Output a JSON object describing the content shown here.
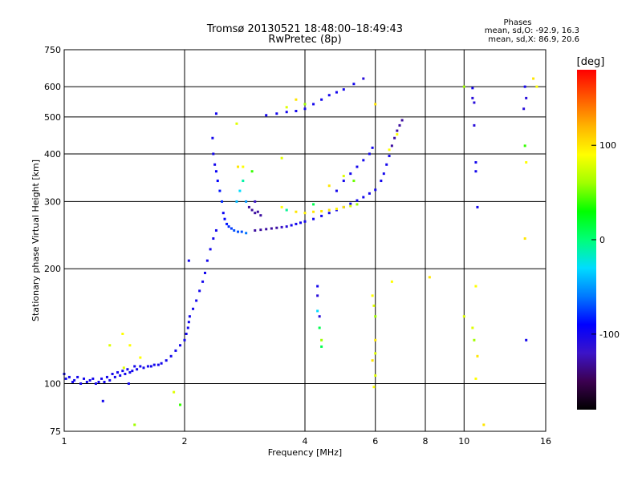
{
  "chart_data": {
    "type": "scatter",
    "title": "Tromsø 20130521 18:48:00–18:49:43",
    "subtitle": "RwPretec (8p)",
    "xlabel": "Frequency [MHz]",
    "ylabel": "Stationary phase Virtual Height [km]",
    "x_scale": "log",
    "y_scale": "log",
    "xlim": [
      1,
      16
    ],
    "ylim": [
      75,
      750
    ],
    "x_ticks": [
      1,
      2,
      4,
      6,
      8,
      10,
      16
    ],
    "x_tick_labels": [
      "1",
      "2",
      "4",
      "6",
      "8",
      "10",
      "16"
    ],
    "y_ticks": [
      75,
      100,
      200,
      300,
      400,
      500,
      600,
      750
    ],
    "y_tick_labels": [
      "75",
      "100",
      "200",
      "300",
      "400",
      "500",
      "600",
      "750"
    ],
    "grid": true,
    "legend": {
      "title": "Phases",
      "lines": [
        "mean, sd,O: -92.9, 16.3",
        "mean, sd,X:  86.9, 20.6"
      ],
      "placement": "top-right"
    },
    "colorbar": {
      "label": "[deg]",
      "range": [
        -180,
        180
      ],
      "ticks": [
        -100,
        0,
        100
      ],
      "tick_labels": [
        "-100",
        "0",
        "100"
      ],
      "colors": [
        "#000000",
        "#3c0050",
        "#3c14c8",
        "#0000ff",
        "#0078ff",
        "#00dcff",
        "#00ff78",
        "#00ff00",
        "#a0ff00",
        "#ffff00",
        "#ffb400",
        "#ff5a00",
        "#ff0000"
      ]
    },
    "points": [
      [
        1.0,
        106,
        -100
      ],
      [
        1.01,
        103,
        -100
      ],
      [
        1.03,
        104,
        -100
      ],
      [
        1.05,
        101,
        -100
      ],
      [
        1.06,
        102,
        -100
      ],
      [
        1.08,
        104,
        -100
      ],
      [
        1.1,
        100,
        -100
      ],
      [
        1.12,
        103,
        -100
      ],
      [
        1.14,
        101,
        -100
      ],
      [
        1.16,
        102,
        -100
      ],
      [
        1.18,
        103,
        -100
      ],
      [
        1.2,
        100,
        -100
      ],
      [
        1.22,
        101,
        -100
      ],
      [
        1.24,
        103,
        -100
      ],
      [
        1.26,
        101,
        -100
      ],
      [
        1.28,
        104,
        -100
      ],
      [
        1.3,
        102,
        -100
      ],
      [
        1.32,
        106,
        -100
      ],
      [
        1.34,
        104,
        -100
      ],
      [
        1.36,
        107,
        -100
      ],
      [
        1.38,
        105,
        -100
      ],
      [
        1.4,
        108,
        -100
      ],
      [
        1.41,
        110,
        80
      ],
      [
        1.42,
        106,
        -100
      ],
      [
        1.44,
        109,
        -100
      ],
      [
        1.46,
        107,
        -100
      ],
      [
        1.48,
        108,
        -100
      ],
      [
        1.5,
        111,
        -100
      ],
      [
        1.52,
        109,
        -100
      ],
      [
        1.55,
        111,
        -100
      ],
      [
        1.58,
        110,
        -100
      ],
      [
        1.62,
        111,
        -100
      ],
      [
        1.65,
        111,
        -100
      ],
      [
        1.68,
        112,
        -100
      ],
      [
        1.72,
        112,
        -100
      ],
      [
        1.75,
        113,
        -100
      ],
      [
        1.8,
        115,
        -100
      ],
      [
        1.85,
        118,
        -100
      ],
      [
        1.9,
        122,
        -100
      ],
      [
        1.95,
        126,
        -100
      ],
      [
        2.0,
        130,
        -100
      ],
      [
        2.02,
        135,
        -100
      ],
      [
        2.04,
        140,
        -100
      ],
      [
        2.05,
        145,
        -100
      ],
      [
        2.06,
        150,
        -100
      ],
      [
        2.1,
        157,
        -100
      ],
      [
        2.14,
        165,
        -100
      ],
      [
        2.18,
        175,
        -100
      ],
      [
        2.22,
        185,
        -100
      ],
      [
        2.25,
        195,
        -100
      ],
      [
        2.28,
        210,
        -100
      ],
      [
        2.32,
        225,
        -100
      ],
      [
        2.36,
        240,
        -100
      ],
      [
        2.4,
        252,
        -100
      ],
      [
        2.35,
        440,
        -100
      ],
      [
        2.36,
        400,
        -100
      ],
      [
        2.38,
        375,
        -100
      ],
      [
        2.4,
        360,
        -95
      ],
      [
        2.42,
        340,
        -90
      ],
      [
        2.45,
        320,
        -85
      ],
      [
        2.48,
        300,
        -80
      ],
      [
        2.5,
        280,
        -95
      ],
      [
        2.52,
        270,
        -90
      ],
      [
        2.55,
        262,
        -85
      ],
      [
        2.58,
        258,
        -80
      ],
      [
        2.62,
        255,
        -75
      ],
      [
        2.66,
        252,
        -70
      ],
      [
        2.72,
        250,
        -70
      ],
      [
        2.78,
        250,
        -70
      ],
      [
        2.85,
        248,
        -60
      ],
      [
        2.7,
        300,
        -40
      ],
      [
        2.75,
        320,
        -30
      ],
      [
        2.8,
        340,
        -10
      ],
      [
        2.72,
        370,
        100
      ],
      [
        2.85,
        300,
        -50
      ],
      [
        2.9,
        290,
        -130
      ],
      [
        2.95,
        285,
        -130
      ],
      [
        3.0,
        280,
        -130
      ],
      [
        3.05,
        282,
        -130
      ],
      [
        3.1,
        276,
        -130
      ],
      [
        3.0,
        300,
        -120
      ],
      [
        3.0,
        252,
        -130
      ],
      [
        3.1,
        253,
        -130
      ],
      [
        3.2,
        254,
        -130
      ],
      [
        3.3,
        255,
        -130
      ],
      [
        3.4,
        256,
        -130
      ],
      [
        3.5,
        257,
        -120
      ],
      [
        3.6,
        258,
        -110
      ],
      [
        3.7,
        260,
        -100
      ],
      [
        3.8,
        262,
        -100
      ],
      [
        3.9,
        264,
        -100
      ],
      [
        4.0,
        266,
        -100
      ],
      [
        4.2,
        270,
        -100
      ],
      [
        4.4,
        275,
        -100
      ],
      [
        4.6,
        280,
        -100
      ],
      [
        4.8,
        285,
        -100
      ],
      [
        5.0,
        290,
        -100
      ],
      [
        5.2,
        296,
        -100
      ],
      [
        5.4,
        302,
        -100
      ],
      [
        5.6,
        308,
        -100
      ],
      [
        5.8,
        315,
        -100
      ],
      [
        6.0,
        322,
        -100
      ],
      [
        3.5,
        290,
        90
      ],
      [
        3.6,
        285,
        90
      ],
      [
        3.8,
        282,
        100
      ],
      [
        4.0,
        280,
        95
      ],
      [
        4.2,
        282,
        100
      ],
      [
        4.4,
        283,
        100
      ],
      [
        4.6,
        285,
        100
      ],
      [
        4.8,
        287,
        95
      ],
      [
        5.0,
        290,
        100
      ],
      [
        5.2,
        292,
        80
      ],
      [
        5.4,
        295,
        60
      ],
      [
        3.6,
        285,
        -10
      ],
      [
        4.2,
        295,
        10
      ],
      [
        4.8,
        320,
        -100
      ],
      [
        5.0,
        340,
        -100
      ],
      [
        5.2,
        355,
        -100
      ],
      [
        5.4,
        370,
        -100
      ],
      [
        5.6,
        385,
        -100
      ],
      [
        5.8,
        400,
        -100
      ],
      [
        5.9,
        415,
        -100
      ],
      [
        5.0,
        350,
        80
      ],
      [
        5.3,
        340,
        50
      ],
      [
        4.6,
        330,
        100
      ],
      [
        6.2,
        340,
        -100
      ],
      [
        6.3,
        355,
        -100
      ],
      [
        6.4,
        375,
        -100
      ],
      [
        6.5,
        395,
        -100
      ],
      [
        6.6,
        420,
        -130
      ],
      [
        6.7,
        440,
        -130
      ],
      [
        6.8,
        460,
        -130
      ],
      [
        6.9,
        475,
        -130
      ],
      [
        7.0,
        490,
        -130
      ],
      [
        6.5,
        410,
        90
      ],
      [
        6.8,
        450,
        90
      ],
      [
        3.2,
        505,
        -100
      ],
      [
        3.4,
        510,
        -100
      ],
      [
        3.6,
        515,
        -100
      ],
      [
        3.8,
        518,
        -100
      ],
      [
        4.0,
        525,
        -100
      ],
      [
        4.2,
        540,
        -100
      ],
      [
        4.4,
        555,
        -100
      ],
      [
        4.6,
        570,
        -100
      ],
      [
        4.8,
        580,
        -100
      ],
      [
        5.0,
        590,
        -100
      ],
      [
        5.3,
        610,
        -100
      ],
      [
        5.6,
        630,
        -110
      ],
      [
        3.6,
        530,
        80
      ],
      [
        4.0,
        540,
        60
      ],
      [
        3.8,
        555,
        100
      ],
      [
        1.4,
        135,
        90
      ],
      [
        1.46,
        126,
        90
      ],
      [
        1.5,
        78,
        60
      ],
      [
        1.55,
        117,
        90
      ],
      [
        1.3,
        126,
        80
      ],
      [
        1.88,
        95,
        80
      ],
      [
        1.95,
        88,
        40
      ],
      [
        1.45,
        100,
        -100
      ],
      [
        1.25,
        90,
        -100
      ],
      [
        2.8,
        370,
        90
      ],
      [
        2.95,
        360,
        40
      ],
      [
        2.05,
        210,
        -100
      ],
      [
        2.4,
        510,
        -100
      ],
      [
        2.7,
        480,
        80
      ],
      [
        3.5,
        390,
        80
      ],
      [
        4.3,
        180,
        -100
      ],
      [
        4.3,
        170,
        -110
      ],
      [
        4.35,
        150,
        -110
      ],
      [
        4.35,
        140,
        10
      ],
      [
        4.4,
        130,
        60
      ],
      [
        4.4,
        125,
        10
      ],
      [
        4.3,
        155,
        -30
      ],
      [
        5.9,
        170,
        90
      ],
      [
        5.95,
        160,
        80
      ],
      [
        6.0,
        150,
        60
      ],
      [
        6.0,
        130,
        100
      ],
      [
        6.0,
        120,
        80
      ],
      [
        5.9,
        115,
        100
      ],
      [
        6.0,
        105,
        80
      ],
      [
        5.95,
        98,
        90
      ],
      [
        6.6,
        185,
        90
      ],
      [
        6.0,
        540,
        100
      ],
      [
        8.2,
        190,
        100
      ],
      [
        10.0,
        600,
        60
      ],
      [
        10.5,
        595,
        -100
      ],
      [
        10.5,
        560,
        -110
      ],
      [
        10.6,
        545,
        -110
      ],
      [
        10.6,
        475,
        -110
      ],
      [
        10.7,
        380,
        -100
      ],
      [
        10.7,
        360,
        -100
      ],
      [
        10.8,
        290,
        -100
      ],
      [
        10.7,
        180,
        90
      ],
      [
        10.5,
        140,
        80
      ],
      [
        10.6,
        130,
        60
      ],
      [
        10.8,
        118,
        100
      ],
      [
        10.7,
        103,
        90
      ],
      [
        11.2,
        78,
        100
      ],
      [
        10.0,
        150,
        80
      ],
      [
        14.2,
        600,
        -100
      ],
      [
        14.3,
        560,
        -110
      ],
      [
        14.1,
        525,
        -110
      ],
      [
        14.2,
        420,
        40
      ],
      [
        14.3,
        380,
        90
      ],
      [
        14.2,
        240,
        100
      ],
      [
        14.3,
        130,
        -100
      ],
      [
        14.9,
        630,
        100
      ],
      [
        15.2,
        600,
        90
      ]
    ]
  }
}
